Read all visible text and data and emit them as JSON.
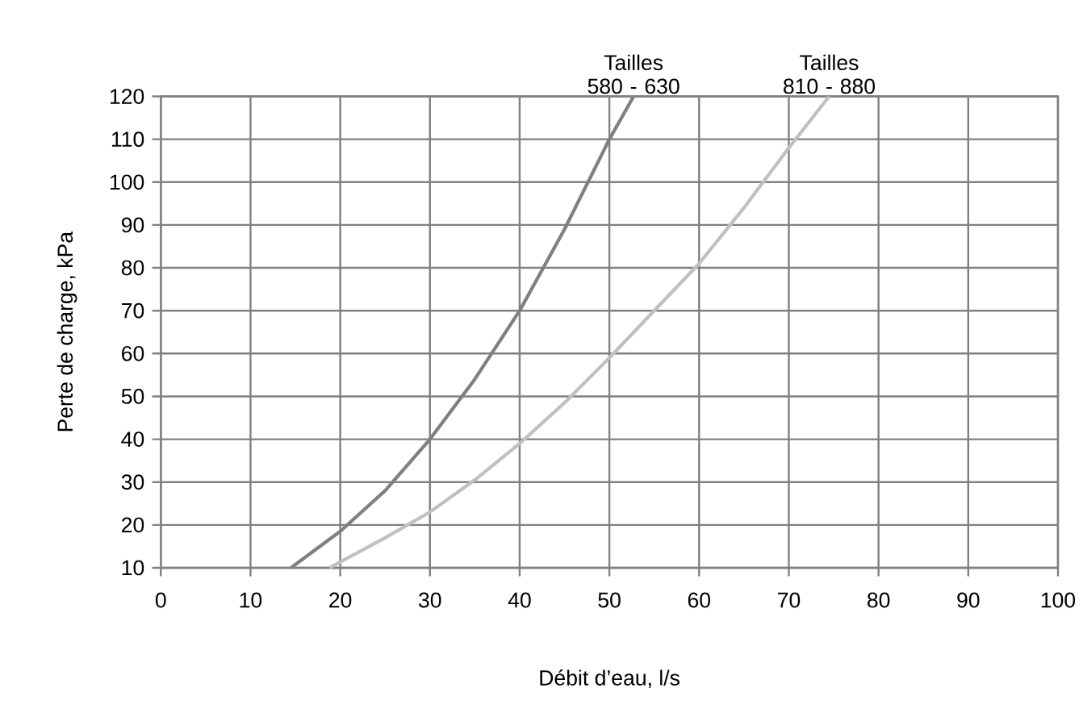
{
  "chart_data": {
    "type": "line",
    "xlabel": "Débit d’eau, l/s",
    "ylabel": "Perte de charge, kPa",
    "xlim": [
      0,
      100
    ],
    "xticks": [
      0,
      10,
      20,
      30,
      40,
      50,
      60,
      70,
      80,
      90,
      100
    ],
    "ylim": [
      10,
      120
    ],
    "yticks": [
      10,
      20,
      30,
      40,
      50,
      60,
      70,
      80,
      90,
      100,
      110,
      120
    ],
    "grid": true,
    "series": [
      {
        "name": "Tailles 580 - 630",
        "color": "#808080",
        "x": [
          14.5,
          20,
          25,
          30,
          35,
          40,
          45,
          50,
          52.7
        ],
        "values": [
          10,
          18.5,
          28,
          40,
          54,
          70,
          89,
          110,
          120
        ]
      },
      {
        "name": "Tailles 810 - 880",
        "color": "#c0c0c0",
        "x": [
          18.8,
          25,
          30,
          35,
          40,
          45,
          50,
          55,
          60,
          65,
          70,
          74.5
        ],
        "values": [
          10,
          17,
          23,
          30.5,
          39,
          48.5,
          59,
          70,
          81,
          94,
          108,
          120
        ]
      }
    ]
  }
}
